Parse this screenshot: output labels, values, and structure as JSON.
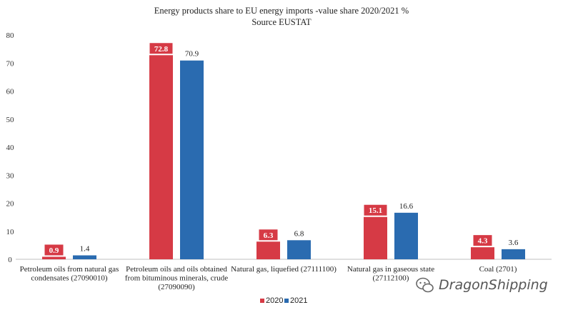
{
  "chart_data": {
    "type": "bar",
    "title": "Energy products share to EU energy imports -value share 2020/2021 %",
    "subtitle": "Source EUSTAT",
    "categories": [
      [
        "Petroleum oils from natural gas",
        "condensates (27090010)"
      ],
      [
        "Petroleum oils and oils obtained",
        "from bituminous minerals, crude",
        "(27090090)"
      ],
      [
        "Natural gas, liquefied (27111100)"
      ],
      [
        "Natural gas in gaseous state",
        "(27112100)"
      ],
      [
        "Coal (2701)"
      ]
    ],
    "series": [
      {
        "name": "2020",
        "color": "#d63a45",
        "values": [
          0.9,
          72.8,
          6.3,
          15.1,
          4.3
        ],
        "labels": [
          "0.9",
          "72.8",
          "6.3",
          "15.1",
          "4.3"
        ]
      },
      {
        "name": "2021",
        "color": "#2a6bb0",
        "values": [
          1.4,
          70.9,
          6.8,
          16.6,
          3.6
        ],
        "labels": [
          "1.4",
          "70.9",
          "6.8",
          "16.6",
          "3.6"
        ]
      }
    ],
    "ylim": [
      0,
      80
    ],
    "yticks": [
      0,
      10,
      20,
      30,
      40,
      50,
      60,
      70,
      80
    ],
    "grid": false,
    "legend_position": "bottom"
  },
  "watermark": {
    "text": "DragonShipping",
    "icon": "wechat-icon"
  }
}
